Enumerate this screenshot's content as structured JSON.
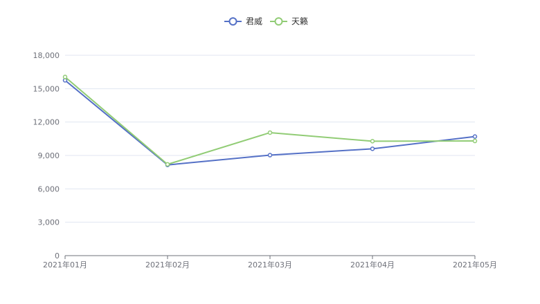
{
  "chart_data": {
    "type": "line",
    "categories": [
      "2021年01月",
      "2021年02月",
      "2021年03月",
      "2021年04月",
      "2021年05月"
    ],
    "series": [
      {
        "name": "君威",
        "color": "#5470c6",
        "values": [
          15750,
          8150,
          9030,
          9600,
          10700
        ]
      },
      {
        "name": "天籁",
        "color": "#91cc75",
        "values": [
          16050,
          8200,
          11050,
          10280,
          10300
        ]
      }
    ],
    "yticks": [
      "0",
      "3,000",
      "6,000",
      "9,000",
      "12,000",
      "15,000",
      "18,000"
    ],
    "ylim": [
      0,
      18000
    ],
    "grid": true,
    "legend_position": "top-center"
  }
}
